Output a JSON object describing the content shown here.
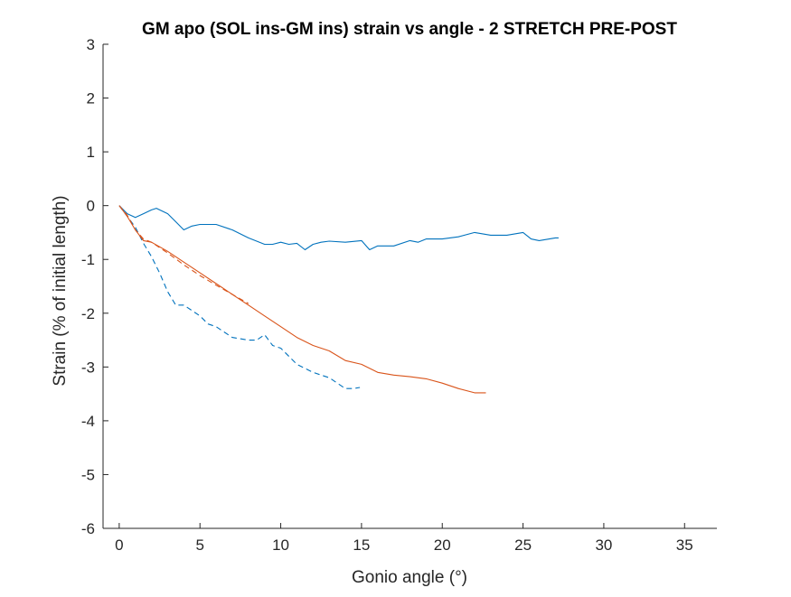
{
  "chart_data": {
    "type": "line",
    "title": "GM apo (SOL ins-GM ins) strain vs angle - 2 STRETCH PRE-POST",
    "xlabel": "Gonio angle (°)",
    "ylabel": "Strain (% of initial length)",
    "xlim": [
      -1,
      37
    ],
    "ylim": [
      -6,
      3
    ],
    "xticks": [
      0,
      5,
      10,
      15,
      20,
      25,
      30,
      35
    ],
    "yticks": [
      -6,
      -5,
      -4,
      -3,
      -2,
      -1,
      0,
      1,
      2,
      3
    ],
    "grid": false,
    "series": [
      {
        "color": "#0072BD",
        "dash": "solid",
        "x": [
          0,
          0.5,
          1,
          1.5,
          2,
          2.3,
          3,
          3.5,
          4,
          4.5,
          5,
          6,
          7,
          8,
          9,
          9.5,
          10,
          10.5,
          11,
          11.5,
          12,
          12.5,
          13,
          14,
          15,
          15.5,
          16,
          17,
          18,
          18.5,
          19,
          20,
          21,
          22,
          23,
          24,
          25,
          25.5,
          26,
          27,
          27.2
        ],
        "y": [
          0,
          -0.15,
          -0.22,
          -0.15,
          -0.08,
          -0.05,
          -0.15,
          -0.3,
          -0.45,
          -0.38,
          -0.35,
          -0.35,
          -0.45,
          -0.6,
          -0.72,
          -0.72,
          -0.68,
          -0.72,
          -0.7,
          -0.82,
          -0.72,
          -0.68,
          -0.66,
          -0.68,
          -0.65,
          -0.82,
          -0.75,
          -0.75,
          -0.65,
          -0.68,
          -0.62,
          -0.62,
          -0.58,
          -0.5,
          -0.55,
          -0.55,
          -0.5,
          -0.62,
          -0.65,
          -0.6,
          -0.6
        ]
      },
      {
        "color": "#0072BD",
        "dash": "dashed",
        "x": [
          0,
          0.5,
          1,
          1.5,
          2,
          2.5,
          3,
          3.5,
          4,
          4.5,
          5,
          5.5,
          6,
          7,
          8,
          8.5,
          9,
          9.5,
          10,
          11,
          12,
          13,
          14,
          14.5,
          14.9
        ],
        "y": [
          0,
          -0.2,
          -0.4,
          -0.7,
          -0.95,
          -1.25,
          -1.6,
          -1.85,
          -1.85,
          -1.95,
          -2.05,
          -2.2,
          -2.25,
          -2.45,
          -2.5,
          -2.5,
          -2.4,
          -2.6,
          -2.65,
          -2.95,
          -3.1,
          -3.2,
          -3.4,
          -3.4,
          -3.38
        ]
      },
      {
        "color": "#D95319",
        "dash": "solid",
        "x": [
          0,
          0.5,
          1,
          1.5,
          2,
          3,
          4,
          5,
          6,
          7,
          8,
          9,
          10,
          11,
          12,
          13,
          14,
          15,
          16,
          17,
          18,
          19,
          20,
          21,
          22,
          22.7
        ],
        "y": [
          0,
          -0.2,
          -0.45,
          -0.65,
          -0.68,
          -0.85,
          -1.05,
          -1.25,
          -1.45,
          -1.65,
          -1.85,
          -2.05,
          -2.25,
          -2.45,
          -2.6,
          -2.7,
          -2.88,
          -2.95,
          -3.1,
          -3.15,
          -3.18,
          -3.22,
          -3.3,
          -3.4,
          -3.48,
          -3.48
        ]
      },
      {
        "color": "#D95319",
        "dash": "dashed",
        "x": [
          0,
          0.5,
          1,
          1.5,
          2,
          3,
          4,
          5,
          6,
          7,
          8
        ],
        "y": [
          0,
          -0.18,
          -0.45,
          -0.62,
          -0.68,
          -0.88,
          -1.1,
          -1.3,
          -1.48,
          -1.65,
          -1.82
        ]
      }
    ]
  }
}
